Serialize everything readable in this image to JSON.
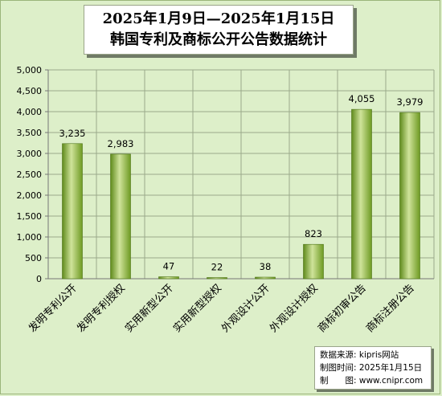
{
  "title": {
    "line1": "2025年1月9日—2025年1月15日",
    "line2": "韩国专利及商标公开公告数据统计"
  },
  "source": {
    "line1": "数据来源: kipris网站",
    "line2": "制图时间: 2025年1月15日",
    "line3": "制　　图: www.cnipr.com"
  },
  "colors": {
    "background": "#ddefc9",
    "bar": "#7faa2c",
    "bar_light": "#cfe39a",
    "grid": "#9aaa8a"
  },
  "chart_data": {
    "type": "bar",
    "title": "韩国专利及商标公开公告数据统计",
    "categories": [
      "发明专利公开",
      "发明专利授权",
      "实用新型公开",
      "实用新型授权",
      "外观设计公开",
      "外观设计授权",
      "商标初审公告",
      "商标注册公告"
    ],
    "values": [
      3235,
      2983,
      47,
      22,
      38,
      823,
      4055,
      3979
    ],
    "data_labels": [
      "3,235",
      "2,983",
      "47",
      "22",
      "38",
      "823",
      "4,055",
      "3,979"
    ],
    "y_ticks": [
      "0",
      "500",
      "1,000",
      "1,500",
      "2,000",
      "2,500",
      "3,000",
      "3,500",
      "4,000",
      "4,500",
      "5,000"
    ],
    "ylim": [
      0,
      5000
    ],
    "grid": true,
    "legend": "none"
  }
}
